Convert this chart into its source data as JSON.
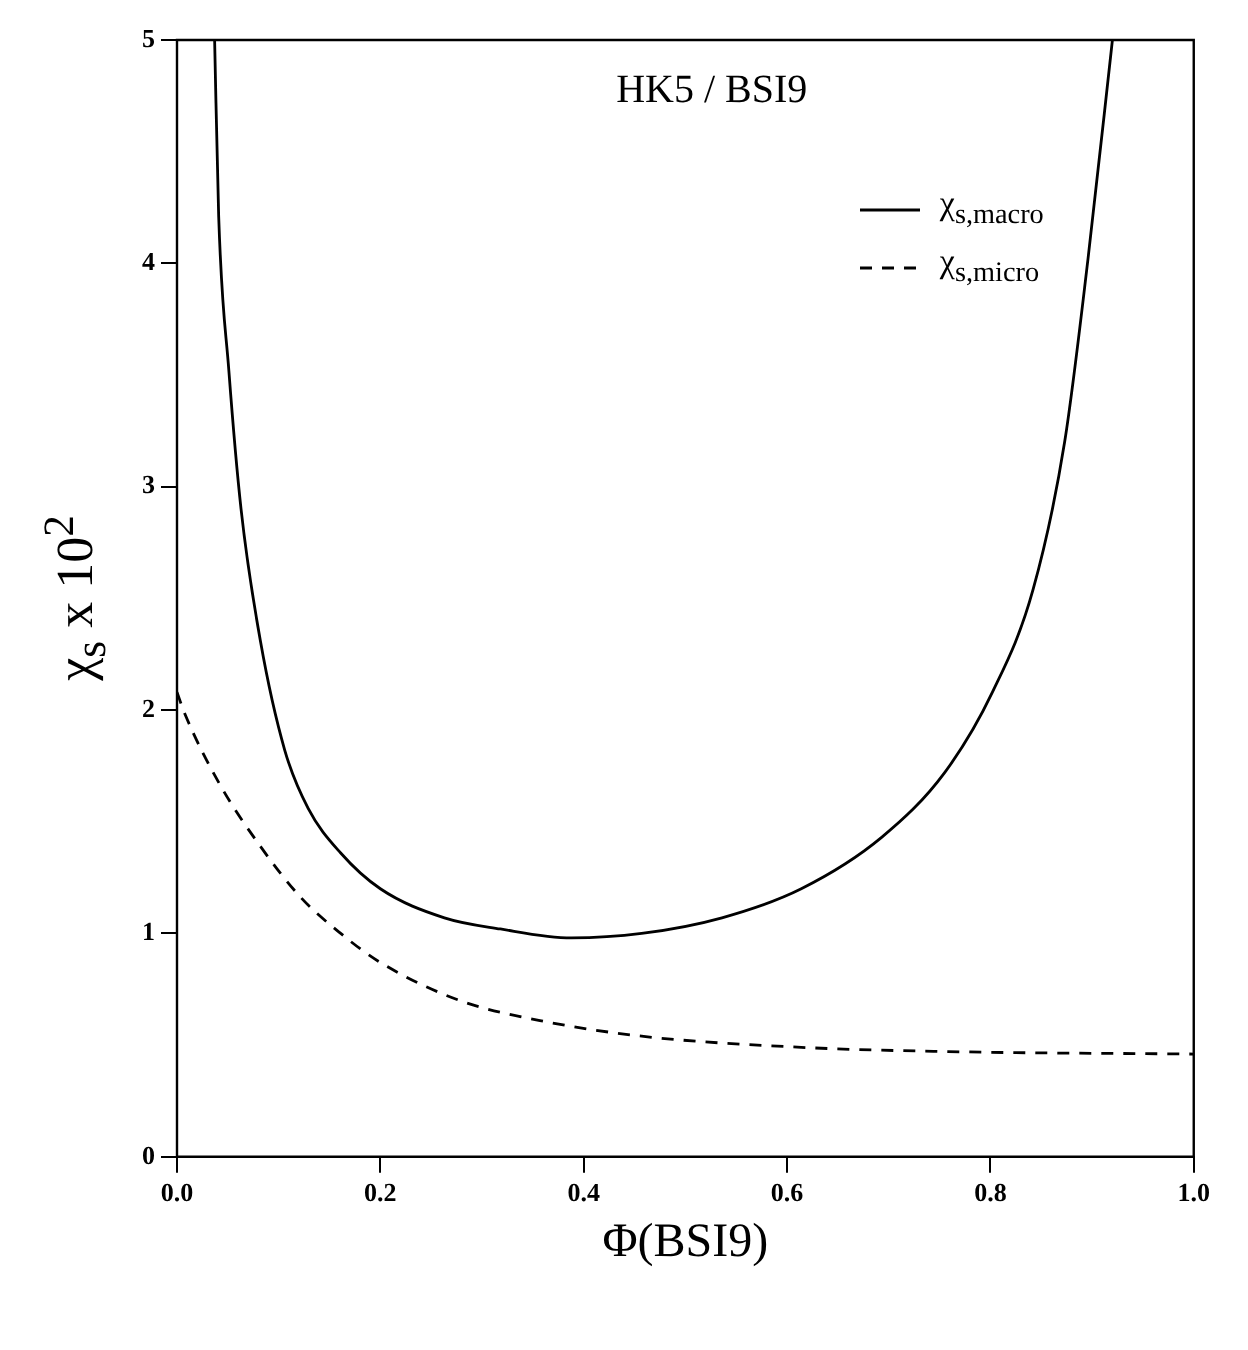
{
  "chart_data": {
    "type": "line",
    "title": "HK5 / BSI9",
    "xlabel": "Φ(BSI9)",
    "ylabel": "χ$_{s}$  x 10$^{2}$",
    "xlim": [
      0,
      1
    ],
    "xticks": [
      {
        "value": 0,
        "label": "0.0"
      },
      {
        "value": 0.2,
        "label": "0.2"
      },
      {
        "value": 0.4,
        "label": "0.4"
      },
      {
        "value": 0.6,
        "label": "0.6"
      },
      {
        "value": 0.8,
        "label": "0.8"
      },
      {
        "value": 1,
        "label": "1.0"
      }
    ],
    "ylim": [
      0,
      5
    ],
    "yticks": [
      0,
      1,
      2,
      3,
      4,
      5
    ],
    "grid": false,
    "legend": "top right",
    "marker": "none",
    "series": [
      {
        "name": "χ$_{s,macro}$",
        "color": "#000000",
        "line_style": "solid",
        "x": [
          0.037,
          0.041,
          0.051,
          0.063,
          0.082,
          0.106,
          0.129,
          0.161,
          0.2,
          0.263,
          0.318,
          0.388,
          0.457,
          0.536,
          0.614,
          0.693,
          0.755,
          0.802,
          0.842,
          0.873,
          0.896,
          0.92
        ],
        "values": [
          5.0,
          4.21,
          3.52,
          2.9,
          2.31,
          1.82,
          1.56,
          1.36,
          1.2,
          1.07,
          1.02,
          0.98,
          1.0,
          1.07,
          1.2,
          1.43,
          1.72,
          2.08,
          2.54,
          3.2,
          4.02,
          5.0
        ]
      },
      {
        "name": "χ$_{s,micro}$",
        "color": "#000000",
        "line_style": "dashed",
        "x": [
          0.0,
          0.008,
          0.043,
          0.082,
          0.122,
          0.161,
          0.2,
          0.278,
          0.357,
          0.457,
          0.614,
          0.771,
          1.0
        ],
        "values": [
          2.08,
          1.98,
          1.66,
          1.39,
          1.16,
          1.0,
          0.87,
          0.7,
          0.61,
          0.54,
          0.49,
          0.47,
          0.46
        ]
      }
    ]
  }
}
